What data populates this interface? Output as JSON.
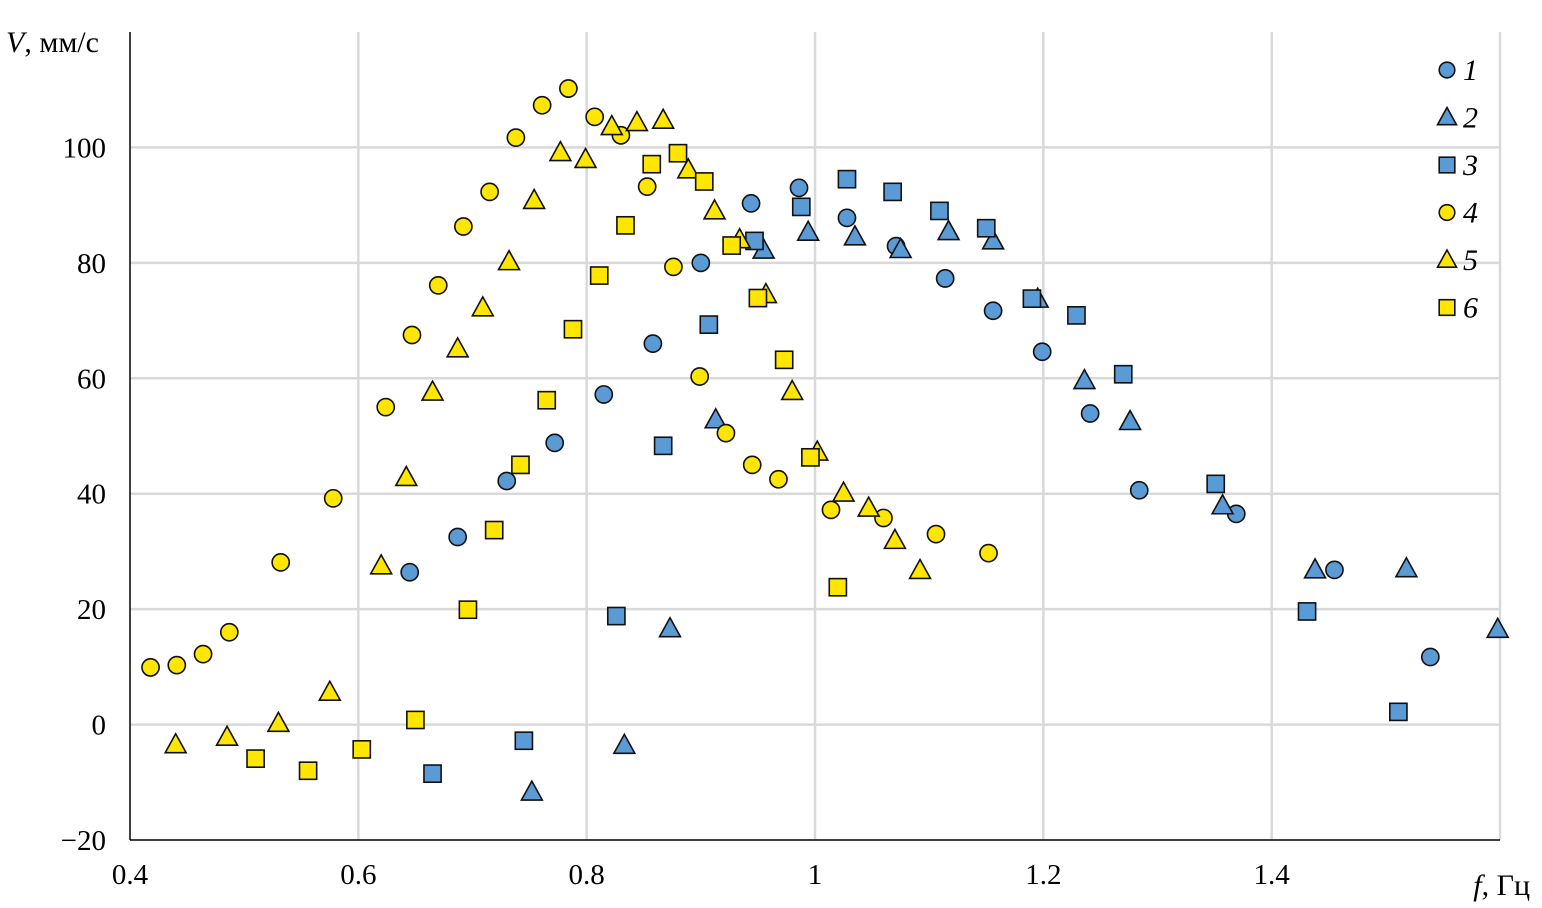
{
  "chart_data": {
    "type": "scatter",
    "title": "",
    "xlabel_var": "f",
    "xlabel_unit": ", Гц",
    "ylabel_var": "V",
    "ylabel_unit": ", мм/с",
    "xlim": [
      0.4,
      1.6
    ],
    "ylim": [
      -20,
      120
    ],
    "x_ticks": [
      0.4,
      0.6,
      0.8,
      1.0,
      1.2,
      1.4
    ],
    "x_tick_labels": [
      "0.4",
      "0.6",
      "0.8",
      "1",
      "1.2",
      "1.4"
    ],
    "y_ticks": [
      -20,
      0,
      20,
      40,
      60,
      80,
      100
    ],
    "y_tick_labels": [
      "−20",
      "0",
      "20",
      "40",
      "60",
      "80",
      "100"
    ],
    "grid": true,
    "legend_position": "top-right",
    "colors": {
      "blue": "#5b9bd5",
      "yellow": "#ffe600",
      "edge": "#111111",
      "grid": "#d9d9d9"
    },
    "series": [
      {
        "name": "1",
        "marker": "circle",
        "color": "#5b9bd5",
        "points": [
          [
            0.645,
            26.4
          ],
          [
            0.687,
            32.5
          ],
          [
            0.73,
            42.2
          ],
          [
            0.772,
            48.8
          ],
          [
            0.815,
            57.2
          ],
          [
            0.858,
            66.0
          ],
          [
            0.9,
            80.0
          ],
          [
            0.944,
            90.3
          ],
          [
            0.986,
            93.0
          ],
          [
            1.028,
            87.8
          ],
          [
            1.071,
            82.9
          ],
          [
            1.114,
            77.3
          ],
          [
            1.156,
            71.7
          ],
          [
            1.199,
            64.6
          ],
          [
            1.241,
            53.9
          ],
          [
            1.284,
            40.6
          ],
          [
            1.369,
            36.5
          ],
          [
            1.455,
            26.8
          ],
          [
            1.539,
            11.7
          ]
        ]
      },
      {
        "name": "2",
        "marker": "triangle",
        "color": "#5b9bd5",
        "points": [
          [
            0.752,
            -11.7
          ],
          [
            0.833,
            -3.6
          ],
          [
            0.873,
            16.6
          ],
          [
            0.913,
            52.8
          ],
          [
            0.955,
            82.2
          ],
          [
            0.994,
            85.3
          ],
          [
            1.035,
            84.5
          ],
          [
            1.075,
            82.3
          ],
          [
            1.117,
            85.4
          ],
          [
            1.156,
            83.8
          ],
          [
            1.195,
            73.7
          ],
          [
            1.236,
            59.6
          ],
          [
            1.276,
            52.5
          ],
          [
            1.357,
            37.9
          ],
          [
            1.438,
            26.8
          ],
          [
            1.518,
            27.0
          ],
          [
            1.598,
            16.5
          ]
        ]
      },
      {
        "name": "3",
        "marker": "square",
        "color": "#5b9bd5",
        "points": [
          [
            0.665,
            -8.5
          ],
          [
            0.745,
            -2.8
          ],
          [
            0.826,
            18.8
          ],
          [
            0.867,
            48.3
          ],
          [
            0.907,
            69.3
          ],
          [
            0.947,
            83.8
          ],
          [
            0.988,
            89.7
          ],
          [
            1.028,
            94.5
          ],
          [
            1.068,
            92.3
          ],
          [
            1.109,
            89.0
          ],
          [
            1.15,
            86.0
          ],
          [
            1.19,
            73.8
          ],
          [
            1.229,
            70.9
          ],
          [
            1.27,
            60.7
          ],
          [
            1.351,
            41.7
          ],
          [
            1.431,
            19.6
          ],
          [
            1.511,
            2.2
          ]
        ]
      },
      {
        "name": "4",
        "marker": "circle",
        "color": "#ffe600",
        "points": [
          [
            0.418,
            9.9
          ],
          [
            0.441,
            10.3
          ],
          [
            0.464,
            12.2
          ],
          [
            0.487,
            16.0
          ],
          [
            0.532,
            28.1
          ],
          [
            0.578,
            39.2
          ],
          [
            0.624,
            55.0
          ],
          [
            0.647,
            67.5
          ],
          [
            0.67,
            76.1
          ],
          [
            0.692,
            86.3
          ],
          [
            0.715,
            92.3
          ],
          [
            0.738,
            101.7
          ],
          [
            0.761,
            107.3
          ],
          [
            0.784,
            110.2
          ],
          [
            0.807,
            105.3
          ],
          [
            0.83,
            102.1
          ],
          [
            0.853,
            93.2
          ],
          [
            0.876,
            79.3
          ],
          [
            0.899,
            60.3
          ],
          [
            0.922,
            50.5
          ],
          [
            0.945,
            45.0
          ],
          [
            0.968,
            42.5
          ],
          [
            1.014,
            37.2
          ],
          [
            1.06,
            35.8
          ],
          [
            1.106,
            33.0
          ],
          [
            1.152,
            29.7
          ]
        ]
      },
      {
        "name": "5",
        "marker": "triangle",
        "color": "#ffe600",
        "points": [
          [
            0.44,
            -3.5
          ],
          [
            0.485,
            -2.2
          ],
          [
            0.53,
            0.2
          ],
          [
            0.575,
            5.6
          ],
          [
            0.62,
            27.5
          ],
          [
            0.642,
            42.8
          ],
          [
            0.665,
            57.6
          ],
          [
            0.687,
            65.1
          ],
          [
            0.709,
            72.2
          ],
          [
            0.732,
            80.2
          ],
          [
            0.754,
            90.8
          ],
          [
            0.777,
            99.1
          ],
          [
            0.799,
            97.9
          ],
          [
            0.822,
            103.6
          ],
          [
            0.844,
            104.3
          ],
          [
            0.867,
            104.7
          ],
          [
            0.889,
            96.1
          ],
          [
            0.912,
            89.0
          ],
          [
            0.934,
            84.0
          ],
          [
            0.957,
            74.5
          ],
          [
            0.98,
            57.7
          ],
          [
            1.002,
            47.2
          ],
          [
            1.025,
            40.1
          ],
          [
            1.047,
            37.5
          ],
          [
            1.07,
            31.9
          ],
          [
            1.092,
            26.7
          ]
        ]
      },
      {
        "name": "6",
        "marker": "square",
        "color": "#ffe600",
        "points": [
          [
            0.51,
            -5.9
          ],
          [
            0.556,
            -8.0
          ],
          [
            0.603,
            -4.3
          ],
          [
            0.65,
            0.8
          ],
          [
            0.696,
            19.9
          ],
          [
            0.719,
            33.7
          ],
          [
            0.742,
            45.0
          ],
          [
            0.765,
            56.2
          ],
          [
            0.788,
            68.5
          ],
          [
            0.811,
            77.8
          ],
          [
            0.834,
            86.5
          ],
          [
            0.857,
            97.1
          ],
          [
            0.88,
            99.0
          ],
          [
            0.903,
            94.1
          ],
          [
            0.927,
            83.0
          ],
          [
            0.95,
            73.9
          ],
          [
            0.973,
            63.2
          ],
          [
            0.996,
            46.3
          ],
          [
            1.02,
            23.8
          ]
        ]
      }
    ]
  }
}
